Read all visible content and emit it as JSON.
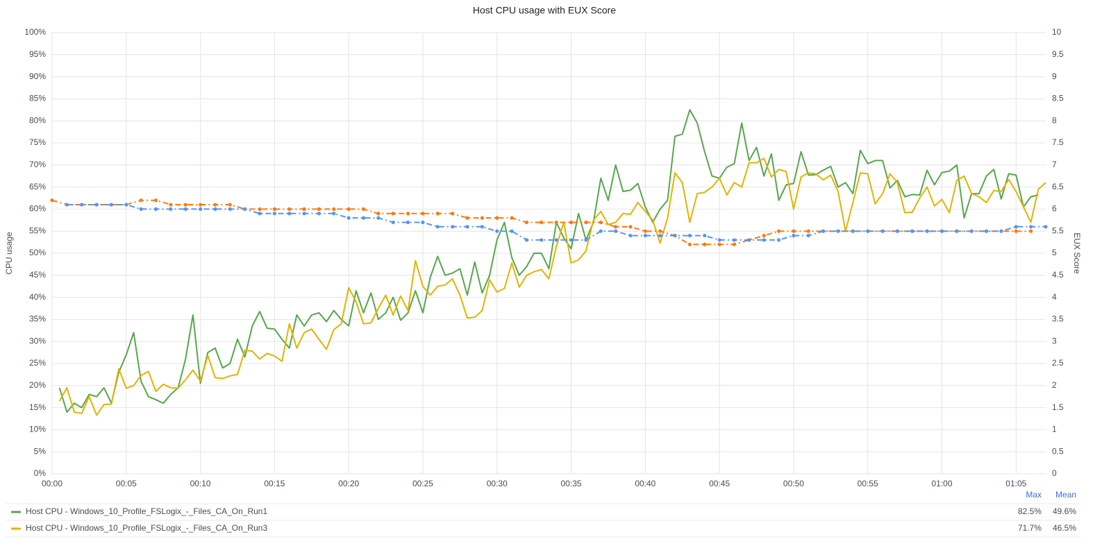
{
  "chart_data": {
    "type": "line",
    "title": "Host CPU usage with EUX Score",
    "y_label": "CPU usage",
    "y2_label": "EUX Score",
    "xlim": [
      0,
      67
    ],
    "xticks": [
      {
        "value": 0,
        "label": "00:00"
      },
      {
        "value": 5,
        "label": "00:05"
      },
      {
        "value": 10,
        "label": "00:10"
      },
      {
        "value": 15,
        "label": "00:15"
      },
      {
        "value": 20,
        "label": "00:20"
      },
      {
        "value": 25,
        "label": "00:25"
      },
      {
        "value": 30,
        "label": "00:30"
      },
      {
        "value": 35,
        "label": "00:35"
      },
      {
        "value": 40,
        "label": "00:40"
      },
      {
        "value": 45,
        "label": "00:45"
      },
      {
        "value": 50,
        "label": "00:50"
      },
      {
        "value": 55,
        "label": "00:55"
      },
      {
        "value": 60,
        "label": "01:00"
      },
      {
        "value": 65,
        "label": "01:05"
      }
    ],
    "ylim": [
      0,
      100
    ],
    "yticks": [
      {
        "value": 0,
        "label": "0%"
      },
      {
        "value": 5,
        "label": "5%"
      },
      {
        "value": 10,
        "label": "10%"
      },
      {
        "value": 15,
        "label": "15%"
      },
      {
        "value": 20,
        "label": "20%"
      },
      {
        "value": 25,
        "label": "25%"
      },
      {
        "value": 30,
        "label": "30%"
      },
      {
        "value": 35,
        "label": "35%"
      },
      {
        "value": 40,
        "label": "40%"
      },
      {
        "value": 45,
        "label": "45%"
      },
      {
        "value": 50,
        "label": "50%"
      },
      {
        "value": 55,
        "label": "55%"
      },
      {
        "value": 60,
        "label": "60%"
      },
      {
        "value": 65,
        "label": "65%"
      },
      {
        "value": 70,
        "label": "70%"
      },
      {
        "value": 75,
        "label": "75%"
      },
      {
        "value": 80,
        "label": "80%"
      },
      {
        "value": 85,
        "label": "85%"
      },
      {
        "value": 90,
        "label": "90%"
      },
      {
        "value": 95,
        "label": "95%"
      },
      {
        "value": 100,
        "label": "100%"
      }
    ],
    "y2lim": [
      0,
      10
    ],
    "y2ticks": [
      0,
      0.5,
      1,
      1.5,
      2,
      2.5,
      3,
      3.5,
      4,
      4.5,
      5,
      5.5,
      6,
      6.5,
      7,
      7.5,
      8,
      8.5,
      9,
      9.5,
      10
    ],
    "grid": true,
    "legend_columns": [
      "Max",
      "Mean"
    ],
    "series": [
      {
        "name": "Host CPU - Windows_10_Profile_FSLogix_-_Files_CA_On_Run1",
        "color": "#56a64b",
        "axis": "y",
        "x": [
          0.5,
          1,
          1.5,
          2,
          2.5,
          3,
          3.5,
          4,
          4.5,
          5,
          5.5,
          6,
          6.5,
          7,
          7.5,
          8,
          8.5,
          9,
          9.5,
          10,
          10.5,
          11,
          11.5,
          12,
          12.5,
          13,
          13.5,
          14,
          14.5,
          15,
          15.5,
          16,
          16.5,
          17,
          17.5,
          18,
          18.5,
          19,
          19.5,
          20,
          20.5,
          21,
          21.5,
          22,
          22.5,
          23,
          23.5,
          24,
          24.5,
          25,
          25.5,
          26,
          26.5,
          27,
          27.5,
          28,
          28.5,
          29,
          29.5,
          30,
          30.5,
          31,
          31.5,
          32,
          32.5,
          33,
          33.5,
          34,
          34.5,
          35,
          35.5,
          36,
          36.5,
          37,
          37.5,
          38,
          38.5,
          39,
          39.5,
          40,
          40.5,
          41,
          41.5,
          42,
          42.5,
          43,
          43.5,
          44,
          44.5,
          45,
          45.5,
          46,
          46.5,
          47,
          47.5,
          48,
          48.5,
          49,
          49.5,
          50,
          50.5,
          51,
          51.5,
          52,
          52.5,
          53,
          53.5,
          54,
          54.5,
          55,
          55.5,
          56,
          56.5,
          57,
          57.5,
          58,
          58.5,
          59,
          59.5,
          60,
          60.5,
          61,
          61.5,
          62,
          62.5,
          63,
          63.5,
          64,
          64.5,
          65,
          65.5,
          66,
          66.5,
          67
        ],
        "values": [
          19.5,
          14,
          16,
          15,
          18,
          17.5,
          19.5,
          16,
          23,
          27,
          32,
          21,
          17.5,
          16.8,
          16,
          18,
          19.5,
          26,
          36,
          20.5,
          27.5,
          28.5,
          24,
          25,
          30.5,
          26.5,
          33.5,
          36.8,
          33,
          32.8,
          30.5,
          28.5,
          36,
          33.5,
          36,
          36.5,
          34.5,
          37,
          35,
          33.5,
          41.5,
          36.5,
          41,
          35,
          36.5,
          40,
          34.8,
          36.5,
          41.5,
          36.5,
          44.5,
          49.3,
          45,
          45.5,
          46.5,
          40.5,
          48,
          41,
          45,
          53,
          57,
          49,
          45,
          47,
          50,
          50,
          46.5,
          57,
          53.5,
          51,
          59,
          53,
          57,
          67,
          62,
          70,
          64,
          64.3,
          65.8,
          60.5,
          57,
          60,
          62,
          76.5,
          77,
          82.5,
          79.5,
          73,
          67.5,
          67,
          69.5,
          70.3,
          79.5,
          71,
          74,
          67.5,
          72.5,
          62,
          65.5,
          65.8,
          73,
          67.7,
          67.8,
          68.8,
          69.7,
          65,
          66,
          63.5,
          73.3,
          70.3,
          71,
          71,
          64.8,
          66.5,
          62.8,
          63.3,
          63.2,
          68.8,
          65.5,
          68.3,
          68.6,
          70,
          58,
          63.5,
          63.5,
          67.5,
          69,
          62.3,
          68,
          67.7,
          60.5,
          62.8,
          63.2,
          null
        ],
        "max": {
          "value": 82.5,
          "label": "82.5%"
        },
        "mean": {
          "value": 49.6,
          "label": "49.6%"
        }
      },
      {
        "name": "Host CPU - Windows_10_Profile_FSLogix_-_Files_CA_On_Run3",
        "color": "#e0b400",
        "axis": "y",
        "x": [
          0.5,
          1,
          1.5,
          2,
          2.5,
          3,
          3.5,
          4,
          4.5,
          5,
          5.5,
          6,
          6.5,
          7,
          7.5,
          8,
          8.5,
          9,
          9.5,
          10,
          10.5,
          11,
          11.5,
          12,
          12.5,
          13,
          13.5,
          14,
          14.5,
          15,
          15.5,
          16,
          16.5,
          17,
          17.5,
          18,
          18.5,
          19,
          19.5,
          20,
          20.5,
          21,
          21.5,
          22,
          22.5,
          23,
          23.5,
          24,
          24.5,
          25,
          25.5,
          26,
          26.5,
          27,
          27.5,
          28,
          28.5,
          29,
          29.5,
          30,
          30.5,
          31,
          31.5,
          32,
          32.5,
          33,
          33.5,
          34,
          34.5,
          35,
          35.5,
          36,
          36.5,
          37,
          37.5,
          38,
          38.5,
          39,
          39.5,
          40,
          40.5,
          41,
          41.5,
          42,
          42.5,
          43,
          43.5,
          44,
          44.5,
          45,
          45.5,
          46,
          46.5,
          47,
          47.5,
          48,
          48.5,
          49,
          49.5,
          50,
          50.5,
          51,
          51.5,
          52,
          52.5,
          53,
          53.5,
          54,
          54.5,
          55,
          55.5,
          56,
          56.5,
          57,
          57.5,
          58,
          58.5,
          59,
          59.5,
          60,
          60.5,
          61,
          61.5,
          62,
          62.5,
          63,
          63.5,
          64,
          64.5,
          65,
          65.5,
          66,
          66.5,
          67
        ],
        "values": [
          16.5,
          19.5,
          14,
          13.7,
          17.5,
          13.3,
          15.7,
          15.8,
          23.8,
          19.4,
          20,
          22.3,
          23.2,
          18.7,
          20.3,
          19.5,
          19.4,
          21.3,
          23.5,
          21,
          26.8,
          21.8,
          21.6,
          22.2,
          22.5,
          28,
          27.8,
          26,
          27.3,
          26.7,
          25.5,
          34,
          28.5,
          32,
          32.8,
          30.5,
          28.2,
          32.7,
          34,
          42.2,
          39,
          34,
          34.2,
          37.5,
          40.5,
          36,
          40.3,
          37,
          48.3,
          42.5,
          40.5,
          42.5,
          42.8,
          44.2,
          40.5,
          35.3,
          35.5,
          37,
          44,
          41.2,
          42,
          47.8,
          42.3,
          45,
          45.8,
          46.3,
          44.2,
          51.5,
          57,
          47.8,
          48.5,
          50.5,
          57.5,
          59.5,
          56.5,
          57,
          59,
          58.8,
          61.5,
          59.5,
          57.5,
          52.3,
          58,
          68.2,
          66,
          57,
          63.5,
          63.8,
          65,
          67,
          63.2,
          66,
          65,
          70.5,
          70.5,
          71.5,
          67.3,
          69,
          68.5,
          60,
          67.3,
          68.2,
          68,
          66.6,
          67.7,
          64,
          55,
          61.5,
          68.2,
          68,
          61.2,
          63.5,
          68,
          66,
          59.2,
          59.3,
          62.5,
          65,
          60.7,
          62.2,
          59.2,
          66.5,
          67.5,
          63.5,
          62.8,
          61.5,
          64.2,
          64,
          66.7,
          64,
          60.5,
          57,
          64.5,
          66
        ],
        "max": {
          "value": 71.7,
          "label": "71.7%"
        },
        "mean": {
          "value": 46.5,
          "label": "46.5%"
        }
      },
      {
        "color": "#ff780a",
        "axis": "y2",
        "line_style": "dashdot",
        "markers": true,
        "x": [
          0,
          1,
          2,
          3,
          4,
          5,
          6,
          7,
          8,
          9,
          10,
          11,
          12,
          13,
          14,
          15,
          16,
          17,
          18,
          19,
          20,
          21,
          22,
          23,
          24,
          25,
          26,
          27,
          28,
          29,
          30,
          31,
          32,
          33,
          34,
          35,
          36,
          37,
          38,
          39,
          40,
          41,
          42,
          43,
          44,
          45,
          46,
          47,
          48,
          49,
          50,
          51,
          52,
          53,
          54,
          55,
          56,
          57,
          58,
          59,
          60,
          61,
          62,
          63,
          64,
          65,
          66,
          67
        ],
        "values": [
          6.2,
          6.1,
          6.1,
          6.1,
          6.1,
          6.1,
          6.2,
          6.2,
          6.1,
          6.1,
          6.1,
          6.1,
          6.1,
          6.0,
          6.0,
          6.0,
          6.0,
          6.0,
          6.0,
          6.0,
          6.0,
          6.0,
          5.9,
          5.9,
          5.9,
          5.9,
          5.9,
          5.9,
          5.8,
          5.8,
          5.8,
          5.8,
          5.7,
          5.7,
          5.7,
          5.7,
          5.7,
          5.7,
          5.6,
          5.6,
          5.5,
          5.5,
          5.4,
          5.2,
          5.2,
          5.2,
          5.2,
          5.3,
          5.4,
          5.5,
          5.5,
          5.5,
          5.5,
          5.5,
          5.5,
          5.5,
          5.5,
          5.5,
          5.5,
          5.5,
          5.5,
          5.5,
          5.5,
          5.5,
          5.5,
          5.5,
          5.5,
          null
        ]
      },
      {
        "color": "#5794f2",
        "axis": "y2",
        "line_style": "dashdot",
        "markers": true,
        "x": [
          0,
          1,
          2,
          3,
          4,
          5,
          6,
          7,
          8,
          9,
          10,
          11,
          12,
          13,
          14,
          15,
          16,
          17,
          18,
          19,
          20,
          21,
          22,
          23,
          24,
          25,
          26,
          27,
          28,
          29,
          30,
          31,
          32,
          33,
          34,
          35,
          36,
          37,
          38,
          39,
          40,
          41,
          42,
          43,
          44,
          45,
          46,
          47,
          48,
          49,
          50,
          51,
          52,
          53,
          54,
          55,
          56,
          57,
          58,
          59,
          60,
          61,
          62,
          63,
          64,
          65,
          66,
          67
        ],
        "values": [
          null,
          6.1,
          6.1,
          6.1,
          6.1,
          6.1,
          6.0,
          6.0,
          6.0,
          6.0,
          6.0,
          6.0,
          6.0,
          6.0,
          5.9,
          5.9,
          5.9,
          5.9,
          5.9,
          5.9,
          5.8,
          5.8,
          5.8,
          5.7,
          5.7,
          5.7,
          5.6,
          5.6,
          5.6,
          5.6,
          5.5,
          5.5,
          5.3,
          5.3,
          5.3,
          5.3,
          5.3,
          5.5,
          5.5,
          5.4,
          5.4,
          5.4,
          5.4,
          5.4,
          5.4,
          5.3,
          5.3,
          5.3,
          5.3,
          5.3,
          5.4,
          5.4,
          5.5,
          5.5,
          5.5,
          5.5,
          5.5,
          5.5,
          5.5,
          5.5,
          5.5,
          5.5,
          5.5,
          5.5,
          5.5,
          5.6,
          5.6,
          5.6
        ]
      }
    ]
  }
}
